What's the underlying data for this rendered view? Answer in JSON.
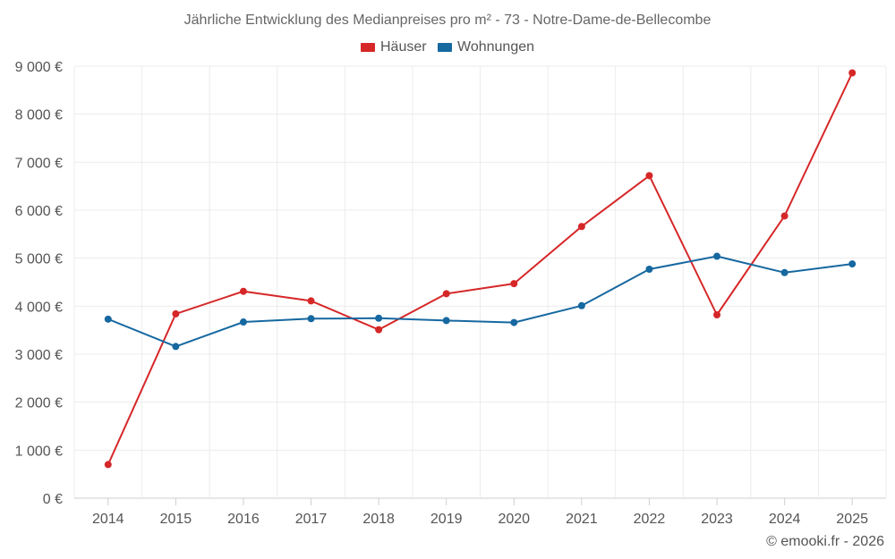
{
  "chart_data": {
    "type": "line",
    "title": "Jährliche Entwicklung des Medianpreises pro m² - 73 - Notre-Dame-de-Bellecombe",
    "xlabel": "",
    "ylabel": "",
    "categories": [
      "2014",
      "2015",
      "2016",
      "2017",
      "2018",
      "2019",
      "2020",
      "2021",
      "2022",
      "2023",
      "2024",
      "2025"
    ],
    "ylim": [
      0,
      9000
    ],
    "yticks": [
      0,
      1000,
      2000,
      3000,
      4000,
      5000,
      6000,
      7000,
      8000,
      9000
    ],
    "ytick_labels": [
      "0 €",
      "1 000 €",
      "2 000 €",
      "3 000 €",
      "4 000 €",
      "5 000 €",
      "6 000 €",
      "7 000 €",
      "8 000 €",
      "9 000 €"
    ],
    "grid": true,
    "legend_position": "top-center",
    "series": [
      {
        "name": "Häuser",
        "color": "#d62728",
        "values": [
          700,
          3840,
          4310,
          4110,
          3510,
          4260,
          4470,
          5660,
          6720,
          3820,
          5880,
          8860
        ]
      },
      {
        "name": "Wohnungen",
        "color": "#1668a0",
        "values": [
          3730,
          3160,
          3670,
          3740,
          3750,
          3700,
          3660,
          4010,
          4770,
          5040,
          4700,
          4880
        ]
      }
    ]
  },
  "credit": "© emooki.fr - 2026"
}
